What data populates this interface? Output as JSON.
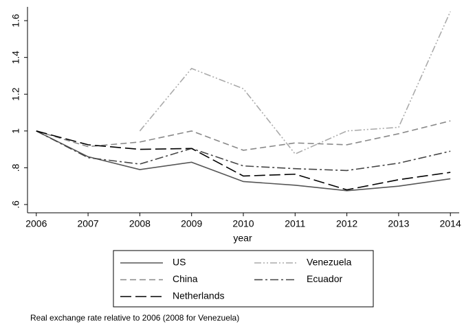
{
  "chart_data": {
    "type": "line",
    "x_label": "year",
    "note": "Real exchange rate relative to 2006 (2008 for Venezuela)",
    "x": [
      2006,
      2007,
      2008,
      2009,
      2010,
      2011,
      2012,
      2013,
      2014
    ],
    "xlim": [
      2005.83,
      2014.17
    ],
    "xticks": [
      2006,
      2007,
      2008,
      2009,
      2010,
      2011,
      2012,
      2013,
      2014
    ],
    "ylim": [
      0.555,
      1.675
    ],
    "yticks": [
      {
        "value": 0.6,
        "label": ".6"
      },
      {
        "value": 0.8,
        "label": ".8"
      },
      1,
      1.2,
      1.4,
      1.6
    ],
    "legend_columns": 2,
    "series": [
      {
        "name": "US",
        "color": "#555555",
        "dash": "none",
        "values": [
          1.0,
          0.86,
          0.79,
          0.83,
          0.725,
          0.705,
          0.675,
          0.7,
          0.74
        ]
      },
      {
        "name": "Venezuela",
        "color": "#aaaaaa",
        "dash": "10 3 2 3 2 3",
        "values": [
          null,
          null,
          1.0,
          1.34,
          1.23,
          0.875,
          1.0,
          1.02,
          1.65
        ]
      },
      {
        "name": "China",
        "color": "#888888",
        "dash": "9 5",
        "values": [
          1.0,
          0.915,
          0.94,
          1.0,
          0.895,
          0.935,
          0.925,
          0.985,
          1.055
        ]
      },
      {
        "name": "Ecuador",
        "color": "#444444",
        "dash": "12 4 3 4",
        "values": [
          1.0,
          0.855,
          0.82,
          0.905,
          0.81,
          0.795,
          0.785,
          0.825,
          0.89
        ]
      },
      {
        "name": "Netherlands",
        "color": "#000000",
        "dash": "16 6",
        "values": [
          1.0,
          0.925,
          0.9,
          0.905,
          0.755,
          0.765,
          0.68,
          0.735,
          0.775
        ]
      }
    ]
  }
}
